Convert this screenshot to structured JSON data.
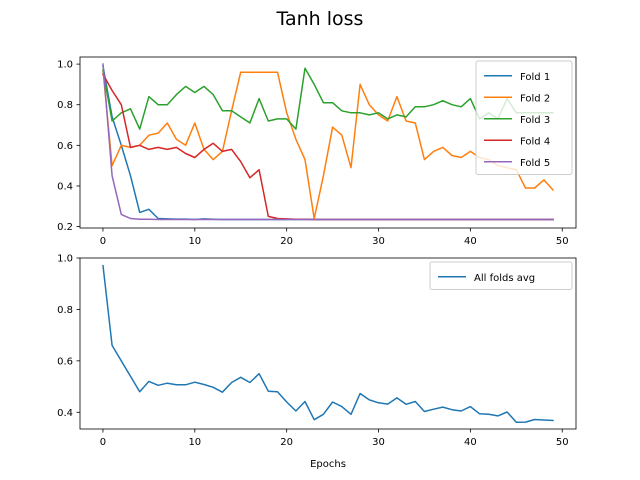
{
  "chart_data": [
    {
      "type": "line",
      "title": "Tanh loss",
      "xlabel": "",
      "ylabel": "",
      "xlim": [
        -2.5,
        51.5
      ],
      "ylim": [
        0.193,
        1.035
      ],
      "xticks": [
        0,
        10,
        20,
        30,
        40,
        50
      ],
      "yticks": [
        0.2,
        0.4,
        0.6,
        0.8,
        1.0
      ],
      "ytick_labels": [
        "0.2",
        "0.4",
        "0.6",
        "0.8",
        "1.0"
      ],
      "legend_position": "top-right",
      "grid": false,
      "x": [
        0,
        1,
        2,
        3,
        4,
        5,
        6,
        7,
        8,
        9,
        10,
        11,
        12,
        13,
        14,
        15,
        16,
        17,
        18,
        19,
        20,
        21,
        22,
        23,
        24,
        25,
        26,
        27,
        28,
        29,
        30,
        31,
        32,
        33,
        34,
        35,
        36,
        37,
        38,
        39,
        40,
        41,
        42,
        43,
        44,
        45,
        46,
        47,
        48,
        49
      ],
      "series": [
        {
          "name": "Fold 1",
          "color": "#1f77b4",
          "values": [
            0.99,
            0.74,
            0.6,
            0.45,
            0.27,
            0.285,
            0.24,
            0.238,
            0.237,
            0.237,
            0.235,
            0.238,
            0.236,
            0.235,
            0.235,
            0.235,
            0.235,
            0.235,
            0.235,
            0.235,
            0.235,
            0.235,
            0.235,
            0.235,
            0.235,
            0.235,
            0.235,
            0.235,
            0.235,
            0.235,
            0.235,
            0.235,
            0.235,
            0.235,
            0.235,
            0.235,
            0.235,
            0.235,
            0.235,
            0.235,
            0.235,
            0.235,
            0.235,
            0.235,
            0.235,
            0.235,
            0.235,
            0.235,
            0.235,
            0.235
          ]
        },
        {
          "name": "Fold 2",
          "color": "#ff7f0e",
          "values": [
            0.97,
            0.5,
            0.6,
            0.59,
            0.6,
            0.65,
            0.66,
            0.71,
            0.63,
            0.6,
            0.71,
            0.58,
            0.53,
            0.57,
            0.77,
            0.96,
            0.96,
            0.96,
            0.96,
            0.96,
            0.76,
            0.63,
            0.53,
            0.24,
            0.45,
            0.69,
            0.65,
            0.49,
            0.9,
            0.8,
            0.75,
            0.72,
            0.84,
            0.72,
            0.71,
            0.53,
            0.57,
            0.59,
            0.55,
            0.54,
            0.57,
            0.54,
            0.53,
            0.5,
            0.49,
            0.48,
            0.39,
            0.39,
            0.43,
            0.38
          ]
        },
        {
          "name": "Fold 3",
          "color": "#2ca02c",
          "values": [
            0.97,
            0.72,
            0.76,
            0.78,
            0.68,
            0.84,
            0.8,
            0.8,
            0.85,
            0.89,
            0.86,
            0.89,
            0.85,
            0.77,
            0.77,
            0.74,
            0.71,
            0.83,
            0.72,
            0.73,
            0.73,
            0.68,
            0.98,
            0.9,
            0.81,
            0.81,
            0.77,
            0.76,
            0.76,
            0.75,
            0.76,
            0.73,
            0.75,
            0.74,
            0.79,
            0.79,
            0.8,
            0.82,
            0.8,
            0.79,
            0.83,
            0.73,
            0.76,
            0.73,
            0.83,
            0.76,
            0.76,
            0.76,
            0.76,
            0.76
          ]
        },
        {
          "name": "Fold 4",
          "color": "#d62728",
          "values": [
            0.95,
            0.87,
            0.8,
            0.59,
            0.6,
            0.58,
            0.59,
            0.58,
            0.59,
            0.56,
            0.54,
            0.58,
            0.61,
            0.57,
            0.58,
            0.52,
            0.44,
            0.48,
            0.25,
            0.24,
            0.238,
            0.236,
            0.236,
            0.235,
            0.235,
            0.235,
            0.235,
            0.235,
            0.235,
            0.235,
            0.235,
            0.235,
            0.235,
            0.235,
            0.235,
            0.235,
            0.235,
            0.235,
            0.235,
            0.235,
            0.235,
            0.235,
            0.235,
            0.235,
            0.235,
            0.235,
            0.235,
            0.235,
            0.235,
            0.235
          ]
        },
        {
          "name": "Fold 5",
          "color": "#9467bd",
          "values": [
            1.0,
            0.45,
            0.26,
            0.24,
            0.236,
            0.236,
            0.235,
            0.235,
            0.235,
            0.235,
            0.235,
            0.235,
            0.235,
            0.235,
            0.235,
            0.235,
            0.235,
            0.235,
            0.235,
            0.235,
            0.235,
            0.235,
            0.235,
            0.235,
            0.235,
            0.235,
            0.235,
            0.235,
            0.235,
            0.235,
            0.235,
            0.235,
            0.235,
            0.235,
            0.235,
            0.235,
            0.235,
            0.235,
            0.235,
            0.235,
            0.235,
            0.235,
            0.235,
            0.235,
            0.235,
            0.235,
            0.235,
            0.235,
            0.235,
            0.235
          ]
        }
      ]
    },
    {
      "type": "line",
      "xlabel": "Epochs",
      "ylabel": "",
      "xlim": [
        -2.5,
        51.5
      ],
      "ylim": [
        0.335,
        1.0
      ],
      "xticks": [
        0,
        10,
        20,
        30,
        40,
        50
      ],
      "yticks": [
        0.4,
        0.6,
        0.8,
        1.0
      ],
      "ytick_labels": [
        "0.4",
        "0.6",
        "0.8",
        "1.0"
      ],
      "legend_position": "top-right",
      "grid": false,
      "x": [
        0,
        1,
        2,
        3,
        4,
        5,
        6,
        7,
        8,
        9,
        10,
        11,
        12,
        13,
        14,
        15,
        16,
        17,
        18,
        19,
        20,
        21,
        22,
        23,
        24,
        25,
        26,
        27,
        28,
        29,
        30,
        31,
        32,
        33,
        34,
        35,
        36,
        37,
        38,
        39,
        40,
        41,
        42,
        43,
        44,
        45,
        46,
        47,
        48,
        49
      ],
      "series": [
        {
          "name": "All folds avg",
          "color": "#1f77b4",
          "values": [
            0.97,
            0.66,
            0.6,
            0.54,
            0.48,
            0.52,
            0.505,
            0.513,
            0.507,
            0.507,
            0.517,
            0.508,
            0.497,
            0.478,
            0.516,
            0.536,
            0.516,
            0.55,
            0.482,
            0.48,
            0.44,
            0.405,
            0.442,
            0.371,
            0.392,
            0.44,
            0.422,
            0.392,
            0.473,
            0.448,
            0.437,
            0.432,
            0.456,
            0.431,
            0.442,
            0.403,
            0.412,
            0.42,
            0.41,
            0.405,
            0.422,
            0.394,
            0.392,
            0.386,
            0.401,
            0.361,
            0.362,
            0.372,
            0.37,
            0.368
          ]
        }
      ]
    }
  ]
}
